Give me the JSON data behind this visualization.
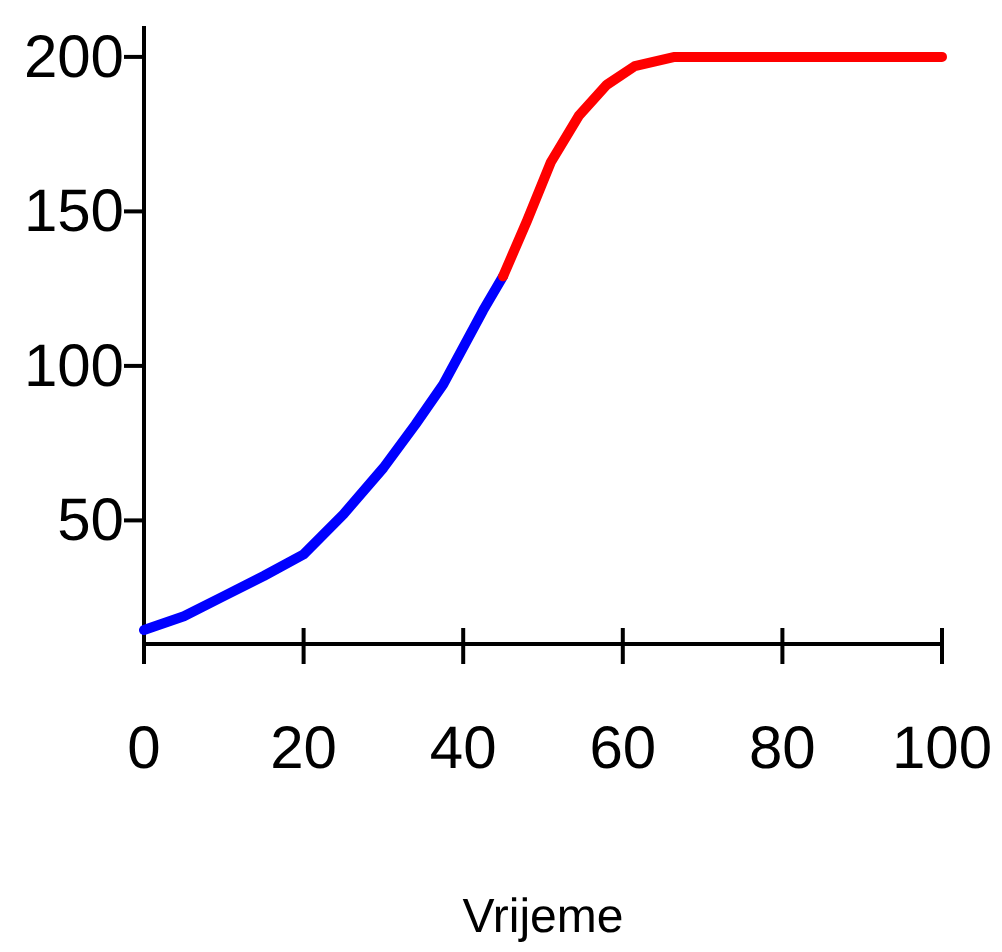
{
  "chart_data": {
    "type": "line",
    "xlabel": "Vrijeme",
    "xlim": [
      0,
      100
    ],
    "xticks": [
      0,
      20,
      40,
      60,
      80,
      100
    ],
    "ylim": [
      10,
      210
    ],
    "yticks": [
      50,
      100,
      150,
      200
    ],
    "grid": false,
    "marker": "none",
    "line_style": "solid",
    "series": [
      {
        "color": "#0000ff",
        "x": [
          0,
          5,
          10,
          15,
          20,
          25,
          30,
          34,
          37.5,
          40,
          42.5,
          45
        ],
        "values": [
          14.5,
          19,
          25.5,
          32,
          39,
          52,
          67,
          81,
          94,
          106,
          118,
          129
        ]
      },
      {
        "color": "#ff0000",
        "x": [
          45,
          48,
          51,
          54.5,
          58,
          61.5,
          66.5,
          80,
          100
        ],
        "values": [
          129,
          147,
          166,
          181,
          191,
          197,
          200,
          200,
          200
        ]
      }
    ]
  }
}
